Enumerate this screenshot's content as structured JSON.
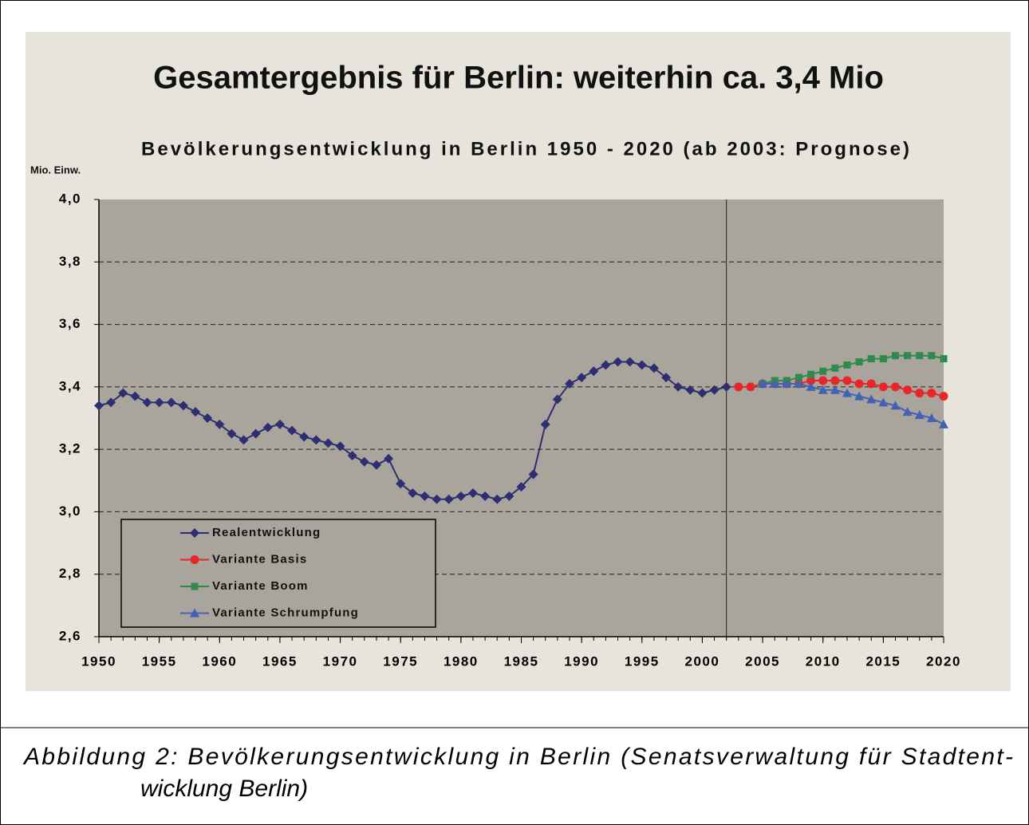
{
  "chart_data": {
    "type": "line",
    "heading": "Gesamtergebnis für Berlin: weiterhin ca. 3,4 Mio",
    "title": "Bevölkerungsentwicklung in Berlin 1950 - 2020 (ab 2003: Prognose)",
    "y_label": "Mio. Einw.",
    "x": [
      1950,
      1951,
      1952,
      1953,
      1954,
      1955,
      1956,
      1957,
      1958,
      1959,
      1960,
      1961,
      1962,
      1963,
      1964,
      1965,
      1966,
      1967,
      1968,
      1969,
      1970,
      1971,
      1972,
      1973,
      1974,
      1975,
      1976,
      1977,
      1978,
      1979,
      1980,
      1981,
      1982,
      1983,
      1984,
      1985,
      1986,
      1987,
      1988,
      1989,
      1990,
      1991,
      1992,
      1993,
      1994,
      1995,
      1996,
      1997,
      1998,
      1999,
      2000,
      2001,
      2002,
      2003,
      2004,
      2005,
      2006,
      2007,
      2008,
      2009,
      2010,
      2011,
      2012,
      2013,
      2014,
      2015,
      2016,
      2017,
      2018,
      2019,
      2020
    ],
    "series": [
      {
        "name": "Realentwicklung",
        "color": "#2e2e72",
        "marker": "diamond",
        "values": [
          3.34,
          3.35,
          3.38,
          3.37,
          3.35,
          3.35,
          3.35,
          3.34,
          3.32,
          3.3,
          3.28,
          3.25,
          3.23,
          3.25,
          3.27,
          3.28,
          3.26,
          3.24,
          3.23,
          3.22,
          3.21,
          3.18,
          3.16,
          3.15,
          3.17,
          3.09,
          3.06,
          3.05,
          3.04,
          3.04,
          3.05,
          3.06,
          3.05,
          3.04,
          3.05,
          3.08,
          3.12,
          3.28,
          3.36,
          3.41,
          3.43,
          3.45,
          3.47,
          3.48,
          3.48,
          3.47,
          3.46,
          3.43,
          3.4,
          3.39,
          3.38,
          3.39,
          3.4,
          null,
          null,
          null,
          null,
          null,
          null,
          null,
          null,
          null,
          null,
          null,
          null,
          null,
          null,
          null,
          null,
          null,
          null
        ]
      },
      {
        "name": "Variante Basis",
        "color": "#e8262a",
        "marker": "circle",
        "values": [
          null,
          null,
          null,
          null,
          null,
          null,
          null,
          null,
          null,
          null,
          null,
          null,
          null,
          null,
          null,
          null,
          null,
          null,
          null,
          null,
          null,
          null,
          null,
          null,
          null,
          null,
          null,
          null,
          null,
          null,
          null,
          null,
          null,
          null,
          null,
          null,
          null,
          null,
          null,
          null,
          null,
          null,
          null,
          null,
          null,
          null,
          null,
          null,
          null,
          null,
          null,
          null,
          null,
          3.4,
          3.4,
          3.41,
          3.41,
          3.41,
          3.41,
          3.42,
          3.42,
          3.42,
          3.42,
          3.41,
          3.41,
          3.4,
          3.4,
          3.39,
          3.38,
          3.38,
          3.37
        ]
      },
      {
        "name": "Variante Boom",
        "color": "#2e8b4a",
        "marker": "square",
        "values": [
          null,
          null,
          null,
          null,
          null,
          null,
          null,
          null,
          null,
          null,
          null,
          null,
          null,
          null,
          null,
          null,
          null,
          null,
          null,
          null,
          null,
          null,
          null,
          null,
          null,
          null,
          null,
          null,
          null,
          null,
          null,
          null,
          null,
          null,
          null,
          null,
          null,
          null,
          null,
          null,
          null,
          null,
          null,
          null,
          null,
          null,
          null,
          null,
          null,
          null,
          null,
          null,
          null,
          null,
          null,
          3.41,
          3.42,
          3.42,
          3.43,
          3.44,
          3.45,
          3.46,
          3.47,
          3.48,
          3.49,
          3.49,
          3.5,
          3.5,
          3.5,
          3.5,
          3.49
        ]
      },
      {
        "name": "Variante Schrumpfung",
        "color": "#4262b4",
        "marker": "triangle",
        "values": [
          null,
          null,
          null,
          null,
          null,
          null,
          null,
          null,
          null,
          null,
          null,
          null,
          null,
          null,
          null,
          null,
          null,
          null,
          null,
          null,
          null,
          null,
          null,
          null,
          null,
          null,
          null,
          null,
          null,
          null,
          null,
          null,
          null,
          null,
          null,
          null,
          null,
          null,
          null,
          null,
          null,
          null,
          null,
          null,
          null,
          null,
          null,
          null,
          null,
          null,
          null,
          null,
          null,
          null,
          null,
          3.41,
          3.41,
          3.41,
          3.41,
          3.4,
          3.39,
          3.39,
          3.38,
          3.37,
          3.36,
          3.35,
          3.34,
          3.32,
          3.31,
          3.3,
          3.28
        ]
      }
    ],
    "xlim": [
      1950,
      2020
    ],
    "xticks": [
      1950,
      1955,
      1960,
      1965,
      1970,
      1975,
      1980,
      1985,
      1990,
      1995,
      2000,
      2005,
      2010,
      2015,
      2020
    ],
    "ylim": [
      2.6,
      4.0
    ],
    "yticks": [
      {
        "value": 2.6,
        "label": "2,6"
      },
      {
        "value": 2.8,
        "label": "2,8"
      },
      {
        "value": 3.0,
        "label": "3,0"
      },
      {
        "value": 3.2,
        "label": "3,2"
      },
      {
        "value": 3.4,
        "label": "3,4"
      },
      {
        "value": 3.6,
        "label": "3,6"
      },
      {
        "value": 3.8,
        "label": "3,8"
      },
      {
        "value": 4.0,
        "label": "4,0"
      }
    ],
    "vline": 2002,
    "grid": true,
    "legend": "lower left"
  },
  "caption": {
    "lines": [
      "Abbildung 2: Bevölkerungsentwicklung in Berlin (Senatsverwaltung für Stadtent-",
      "wicklung Berlin)"
    ]
  }
}
